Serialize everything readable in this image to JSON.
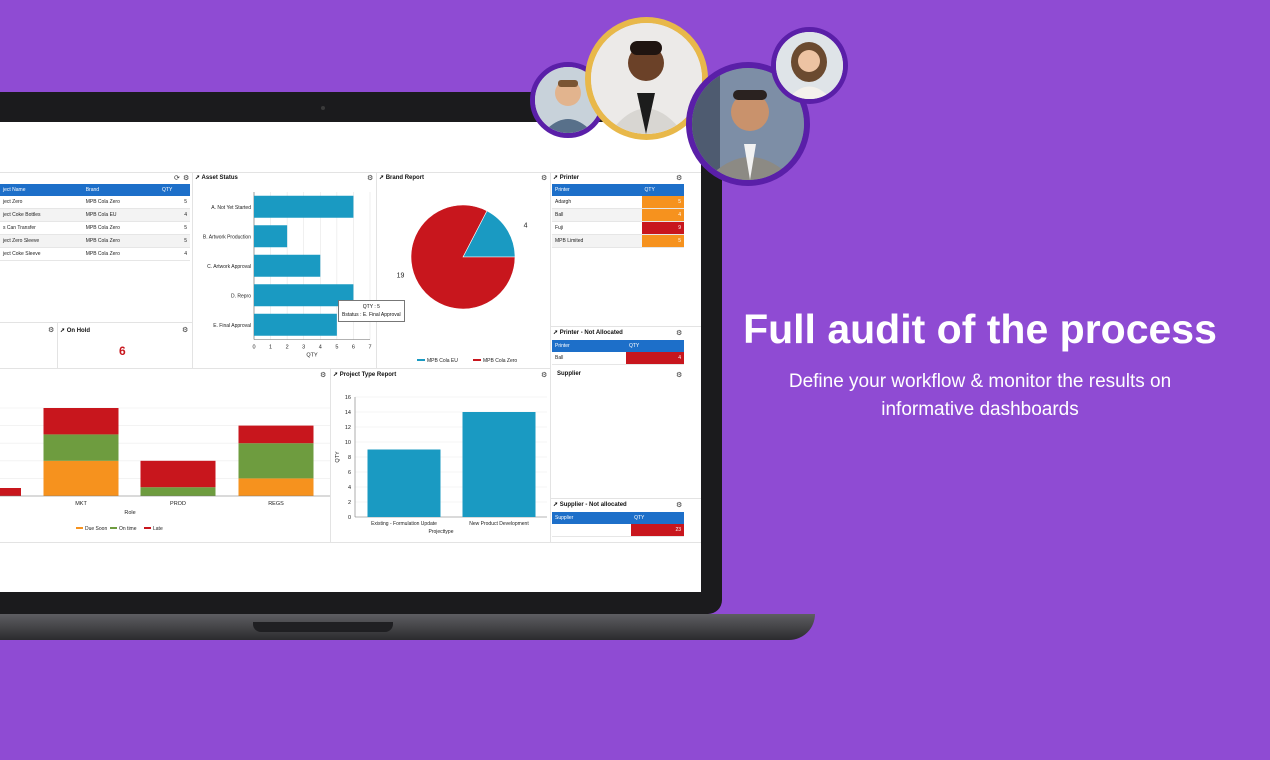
{
  "hero": {
    "title": "Full audit of the process",
    "subtitle_line1": "Define your workflow & monitor the results on",
    "subtitle_line2": "informative dashboards"
  },
  "colors": {
    "background": "#8f4bd3",
    "table_header": "#1d6fc9",
    "bar_teal": "#1a9ac2",
    "red": "#c8161d",
    "orange": "#f6921e",
    "green": "#6e9c3f"
  },
  "projects_table": {
    "headers": [
      "ject Name",
      "Brand",
      "QTY"
    ],
    "rows": [
      [
        "ject Zero",
        "MPB Cola Zero",
        "5"
      ],
      [
        "ject Coke Bottles",
        "MPB Cola EU",
        "4"
      ],
      [
        "s Can Transfer",
        "MPB Cola Zero",
        "5"
      ],
      [
        "ject Zero Sleeve",
        "MPB Cola Zero",
        "5"
      ],
      [
        "ject Coke Sleeve",
        "MPB Cola Zero",
        "4"
      ]
    ]
  },
  "on_hold": {
    "title": "On Hold",
    "value": "6"
  },
  "asset_status": {
    "title": "Asset Status",
    "tooltip_line1": "QTY : 5",
    "tooltip_line2": "Bstatus : E. Final Approval"
  },
  "brand_report": {
    "title": "Brand Report"
  },
  "printer": {
    "title": "Printer",
    "headers": [
      "Printer",
      "QTY"
    ],
    "rows": [
      [
        "Adargh",
        "5"
      ],
      [
        "Ball",
        "4"
      ],
      [
        "Fuji",
        "9"
      ],
      [
        "MPB Limited",
        "5"
      ]
    ]
  },
  "printer_not_allocated": {
    "title": "Printer - Not Allocated",
    "headers": [
      "Printer",
      "QTY"
    ],
    "rows": [
      [
        "Ball",
        "4"
      ]
    ]
  },
  "project_type_report": {
    "title": "Project Type Report"
  },
  "supplier": {
    "title": "Supplier"
  },
  "supplier_not_allocated": {
    "title": "Supplier - Not allocated",
    "headers": [
      "Supplier",
      "QTY"
    ],
    "rows": [
      [
        "",
        "23"
      ]
    ]
  },
  "chart_data": [
    {
      "type": "bar",
      "orientation": "horizontal",
      "title": "Asset Status",
      "categories": [
        "A. Not Yet Started",
        "B. Artwork Production",
        "C. Artwork Approval",
        "D. Repro",
        "E. Final Approval"
      ],
      "values": [
        6,
        2,
        4,
        6,
        5
      ],
      "xlabel": "QTY",
      "xlim": [
        0,
        7
      ],
      "xticks": [
        "0",
        "1",
        "2",
        "3",
        "4",
        "5",
        "6",
        "7"
      ]
    },
    {
      "type": "pie",
      "title": "Brand Report",
      "series": [
        {
          "name": "MPB Cola EU",
          "value": 4,
          "color": "#1a9ac2"
        },
        {
          "name": "MPB Cola Zero",
          "value": 19,
          "color": "#c8161d"
        }
      ],
      "labels": [
        "19",
        "4"
      ],
      "legend": "bottom"
    },
    {
      "type": "bar",
      "stacked": true,
      "categories": [
        "MKT",
        "PROD",
        "REGS"
      ],
      "xlabel": "Role",
      "series": [
        {
          "name": "Due Soon",
          "color": "#f6921e",
          "values": [
            4,
            0,
            2
          ]
        },
        {
          "name": "On time",
          "color": "#6e9c3f",
          "values": [
            3,
            1,
            4
          ]
        },
        {
          "name": "Late",
          "color": "#c8161d",
          "values": [
            3,
            3,
            2
          ]
        }
      ],
      "legend": "bottom"
    },
    {
      "type": "bar",
      "title": "Project Type Report",
      "categories": [
        "Existing - Formulation Update",
        "New Product Development"
      ],
      "values": [
        9,
        14
      ],
      "xlabel": "Projecttype",
      "ylabel": "QTY",
      "ylim": [
        0,
        16
      ],
      "yticks": [
        "0",
        "2",
        "4",
        "6",
        "8",
        "10",
        "12",
        "14",
        "16"
      ]
    }
  ]
}
